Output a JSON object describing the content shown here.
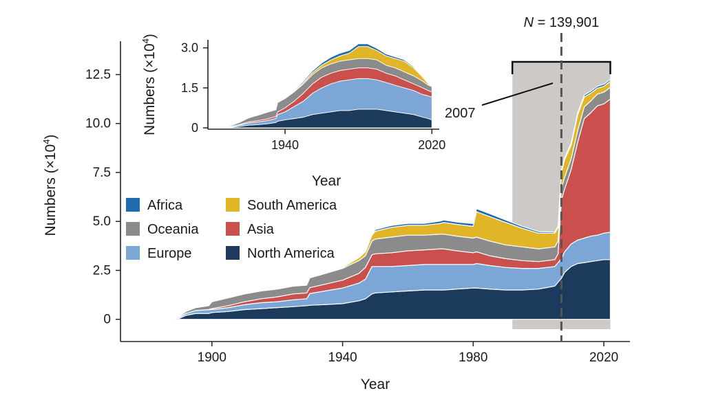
{
  "chart_data": [
    {
      "id": "main",
      "type": "area",
      "stacked": true,
      "xlabel": "Year",
      "ylabel": "Numbers (×10⁴)",
      "ylabel_base": "Numbers (×10",
      "ylabel_exp": "4",
      "ylabel_close": ")",
      "xlim": [
        1872,
        2028
      ],
      "ylim": [
        -0.5,
        14.2
      ],
      "xticks": [
        1900,
        1940,
        1980,
        2020
      ],
      "yticks": [
        0,
        2.5,
        5.0,
        7.5,
        10.0,
        12.5
      ],
      "ytick_labels": [
        "0",
        "2.5",
        "5.0",
        "7.5",
        "10.0",
        "12.5"
      ],
      "legend_position": "middle-left",
      "grid": false,
      "x": [
        1880,
        1885,
        1890,
        1892,
        1895,
        1899,
        1900,
        1905,
        1910,
        1915,
        1920,
        1925,
        1929,
        1930,
        1935,
        1940,
        1945,
        1947,
        1949,
        1950,
        1955,
        1960,
        1965,
        1970,
        1971,
        1975,
        1980,
        1981,
        1985,
        1990,
        1995,
        2000,
        2005,
        2006,
        2007,
        2008,
        2010,
        2012,
        2014,
        2016,
        2018,
        2020,
        2022
      ],
      "series": [
        {
          "name": "North America",
          "color": "#1b3a5c",
          "values": [
            0,
            0.02,
            0.05,
            0.2,
            0.3,
            0.3,
            0.35,
            0.4,
            0.5,
            0.55,
            0.6,
            0.65,
            0.7,
            0.72,
            0.76,
            0.8,
            0.95,
            1.05,
            1.3,
            1.35,
            1.4,
            1.45,
            1.5,
            1.5,
            1.5,
            1.55,
            1.6,
            1.6,
            1.55,
            1.5,
            1.5,
            1.55,
            1.7,
            1.9,
            2.1,
            2.4,
            2.7,
            2.85,
            2.9,
            2.95,
            3.0,
            3.05,
            3.05
          ]
        },
        {
          "name": "Europe",
          "color": "#7ba6d6",
          "values": [
            0,
            0.02,
            0.05,
            0.1,
            0.15,
            0.2,
            0.15,
            0.2,
            0.25,
            0.3,
            0.3,
            0.35,
            0.35,
            0.6,
            0.7,
            0.8,
            0.9,
            1.0,
            1.4,
            1.35,
            1.3,
            1.3,
            1.3,
            1.3,
            1.3,
            1.25,
            1.2,
            1.25,
            1.2,
            1.15,
            1.1,
            1.05,
            1.0,
            1.0,
            1.0,
            1.05,
            1.15,
            1.2,
            1.25,
            1.3,
            1.3,
            1.35,
            1.4
          ]
        },
        {
          "name": "Asia",
          "color": "#c9504c",
          "values": [
            0,
            0,
            0,
            0,
            0,
            0,
            0.05,
            0.1,
            0.15,
            0.2,
            0.25,
            0.3,
            0.3,
            0.3,
            0.35,
            0.4,
            0.5,
            0.6,
            0.6,
            0.65,
            0.7,
            0.75,
            0.75,
            0.8,
            0.8,
            0.7,
            0.6,
            0.6,
            0.5,
            0.45,
            0.4,
            0.35,
            0.35,
            0.45,
            3.0,
            3.2,
            3.8,
            5.0,
            6.1,
            6.3,
            6.6,
            6.6,
            6.8
          ]
        },
        {
          "name": "Oceania",
          "color": "#8b8b8b",
          "values": [
            0,
            0.02,
            0.05,
            0.1,
            0.15,
            0.2,
            0.35,
            0.4,
            0.4,
            0.4,
            0.4,
            0.4,
            0.4,
            0.5,
            0.55,
            0.6,
            0.65,
            0.6,
            0.7,
            0.75,
            0.8,
            0.8,
            0.75,
            0.75,
            0.75,
            0.75,
            0.75,
            0.75,
            0.75,
            0.7,
            0.7,
            0.65,
            0.65,
            0.65,
            0.6,
            0.6,
            0.55,
            0.6,
            0.6,
            0.6,
            0.6,
            0.6,
            0.6
          ]
        },
        {
          "name": "South America",
          "color": "#e0b527",
          "values": [
            0,
            0,
            0,
            0,
            0,
            0,
            0,
            0,
            0,
            0,
            0,
            0,
            0,
            0,
            0,
            0.05,
            0.15,
            0.2,
            0.3,
            0.4,
            0.5,
            0.5,
            0.5,
            0.55,
            0.6,
            0.6,
            0.6,
            1.3,
            1.25,
            1.15,
            0.95,
            0.8,
            0.7,
            0.7,
            0.8,
            0.9,
            0.7,
            0.8,
            0.5,
            0.4,
            0.3,
            0.3,
            0.3
          ]
        },
        {
          "name": "Africa",
          "color": "#1f6bb0",
          "values": [
            0,
            0,
            0,
            0,
            0,
            0,
            0,
            0,
            0,
            0,
            0.02,
            0.02,
            0.03,
            0.03,
            0.04,
            0.05,
            0.05,
            0.05,
            0.06,
            0.08,
            0.09,
            0.1,
            0.1,
            0.12,
            0.12,
            0.12,
            0.14,
            0.15,
            0.15,
            0.12,
            0.1,
            0.08,
            0.06,
            0.06,
            0.1,
            0.1,
            0.1,
            0.1,
            0.1,
            0.1,
            0.1,
            0.1,
            0.1
          ]
        }
      ],
      "highlight_range": [
        1992,
        2022
      ],
      "vline_year": 2007,
      "vline_label_italic": "N",
      "vline_label_rest": " = 139,901",
      "annotation": "2007"
    },
    {
      "id": "inset",
      "type": "area",
      "stacked": true,
      "xlabel": "Year",
      "ylabel": "Numbers (×10⁴)",
      "ylabel_base": "Numbers (×10",
      "ylabel_exp": "4",
      "ylabel_close": ")",
      "xlim": [
        1898,
        2024
      ],
      "ylim": [
        -0.05,
        3.3
      ],
      "xticks": [
        1940,
        2020
      ],
      "yticks": [
        0,
        1.5,
        3.0
      ],
      "ytick_labels": [
        "0",
        "1.5",
        "3.0"
      ],
      "grid": false,
      "x": [
        1906,
        1910,
        1915,
        1920,
        1925,
        1930,
        1935,
        1936,
        1940,
        1945,
        1950,
        1955,
        1960,
        1965,
        1970,
        1975,
        1980,
        1985,
        1990,
        1995,
        2000,
        2005,
        2010,
        2015,
        2018,
        2020
      ],
      "series": [
        {
          "name": "North America",
          "color": "#1b3a5c",
          "values": [
            0,
            0.02,
            0.05,
            0.1,
            0.12,
            0.15,
            0.2,
            0.25,
            0.3,
            0.35,
            0.4,
            0.5,
            0.55,
            0.6,
            0.65,
            0.65,
            0.7,
            0.7,
            0.7,
            0.65,
            0.6,
            0.55,
            0.5,
            0.4,
            0.35,
            0.3
          ]
        },
        {
          "name": "Europe",
          "color": "#7ba6d6",
          "values": [
            0,
            0.02,
            0.05,
            0.08,
            0.1,
            0.12,
            0.15,
            0.25,
            0.3,
            0.45,
            0.6,
            0.8,
            0.95,
            1.05,
            1.1,
            1.15,
            1.15,
            1.15,
            1.1,
            1.05,
            1.0,
            0.95,
            0.9,
            0.85,
            0.85,
            0.85
          ]
        },
        {
          "name": "Asia",
          "color": "#c9504c",
          "values": [
            0,
            0,
            0.02,
            0.04,
            0.05,
            0.06,
            0.08,
            0.1,
            0.15,
            0.2,
            0.3,
            0.35,
            0.4,
            0.4,
            0.4,
            0.4,
            0.4,
            0.4,
            0.4,
            0.35,
            0.35,
            0.3,
            0.25,
            0.25,
            0.2,
            0.2
          ]
        },
        {
          "name": "Oceania",
          "color": "#8b8b8b",
          "values": [
            0,
            0.03,
            0.08,
            0.15,
            0.2,
            0.25,
            0.25,
            0.35,
            0.35,
            0.35,
            0.35,
            0.35,
            0.35,
            0.35,
            0.35,
            0.35,
            0.35,
            0.35,
            0.35,
            0.3,
            0.3,
            0.3,
            0.3,
            0.25,
            0.2,
            0.2
          ]
        },
        {
          "name": "South America",
          "color": "#e0b527",
          "values": [
            0,
            0,
            0,
            0,
            0,
            0,
            0,
            0,
            0,
            0.02,
            0.05,
            0.08,
            0.1,
            0.15,
            0.2,
            0.25,
            0.45,
            0.45,
            0.35,
            0.35,
            0.35,
            0.4,
            0.3,
            0.15,
            0.05,
            0.0
          ]
        },
        {
          "name": "Africa",
          "color": "#1f6bb0",
          "values": [
            0,
            0,
            0,
            0,
            0,
            0,
            0,
            0.01,
            0.02,
            0.03,
            0.05,
            0.06,
            0.08,
            0.1,
            0.1,
            0.1,
            0.1,
            0.1,
            0.08,
            0.07,
            0.06,
            0.05,
            0.04,
            0.03,
            0.02,
            0.02
          ]
        }
      ]
    }
  ],
  "legend": [
    {
      "name": "Africa",
      "color": "#1f6bb0"
    },
    {
      "name": "South America",
      "color": "#e0b527"
    },
    {
      "name": "Oceania",
      "color": "#8b8b8b"
    },
    {
      "name": "Asia",
      "color": "#c9504c"
    },
    {
      "name": "Europe",
      "color": "#7ba6d6"
    },
    {
      "name": "North America",
      "color": "#1b3a5c"
    }
  ]
}
